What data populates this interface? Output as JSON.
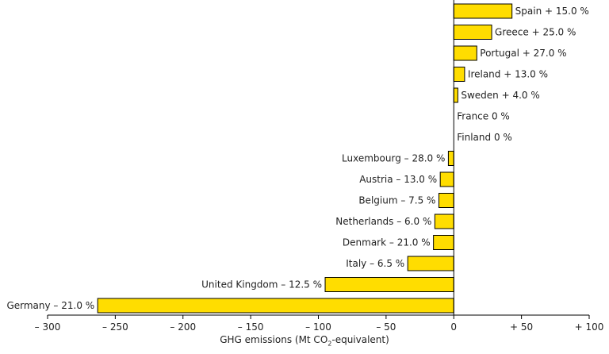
{
  "chart_data": {
    "type": "bar",
    "orientation": "horizontal",
    "title": "",
    "xlabel": {
      "before": "GHG emissions (Mt CO",
      "subscript": "2",
      "after": "-equivalent)"
    },
    "xlim": [
      -300,
      100
    ],
    "xticks": [
      {
        "value": -300,
        "label": "– 300"
      },
      {
        "value": -250,
        "label": "– 250"
      },
      {
        "value": -200,
        "label": "– 200"
      },
      {
        "value": -150,
        "label": "– 150"
      },
      {
        "value": -100,
        "label": "– 100"
      },
      {
        "value": -50,
        "label": "– 50"
      },
      {
        "value": 0,
        "label": "0"
      },
      {
        "value": 50,
        "label": "+ 50"
      },
      {
        "value": 100,
        "label": "+ 100"
      }
    ],
    "categories": [
      "Spain + 15.0 %",
      "Greece + 25.0 %",
      "Portugal + 27.0 %",
      "Ireland + 13.0 %",
      "Sweden + 4.0 %",
      "France 0 %",
      "Finland 0 %",
      "Luxembourg – 28.0 %",
      "Austria – 13.0 %",
      "Belgium – 7.5 %",
      "Netherlands – 6.0 %",
      "Denmark – 21.0 %",
      "Italy – 6.5 %",
      "United Kingdom – 12.5 %",
      "Germany – 21.0 %"
    ],
    "values": [
      43,
      28,
      17,
      8,
      3,
      0,
      0,
      -4,
      -10,
      -11,
      -14,
      -15,
      -34,
      -95,
      -263
    ],
    "bar_color": "#ffdd00",
    "bar_edge_color": "#000000"
  }
}
